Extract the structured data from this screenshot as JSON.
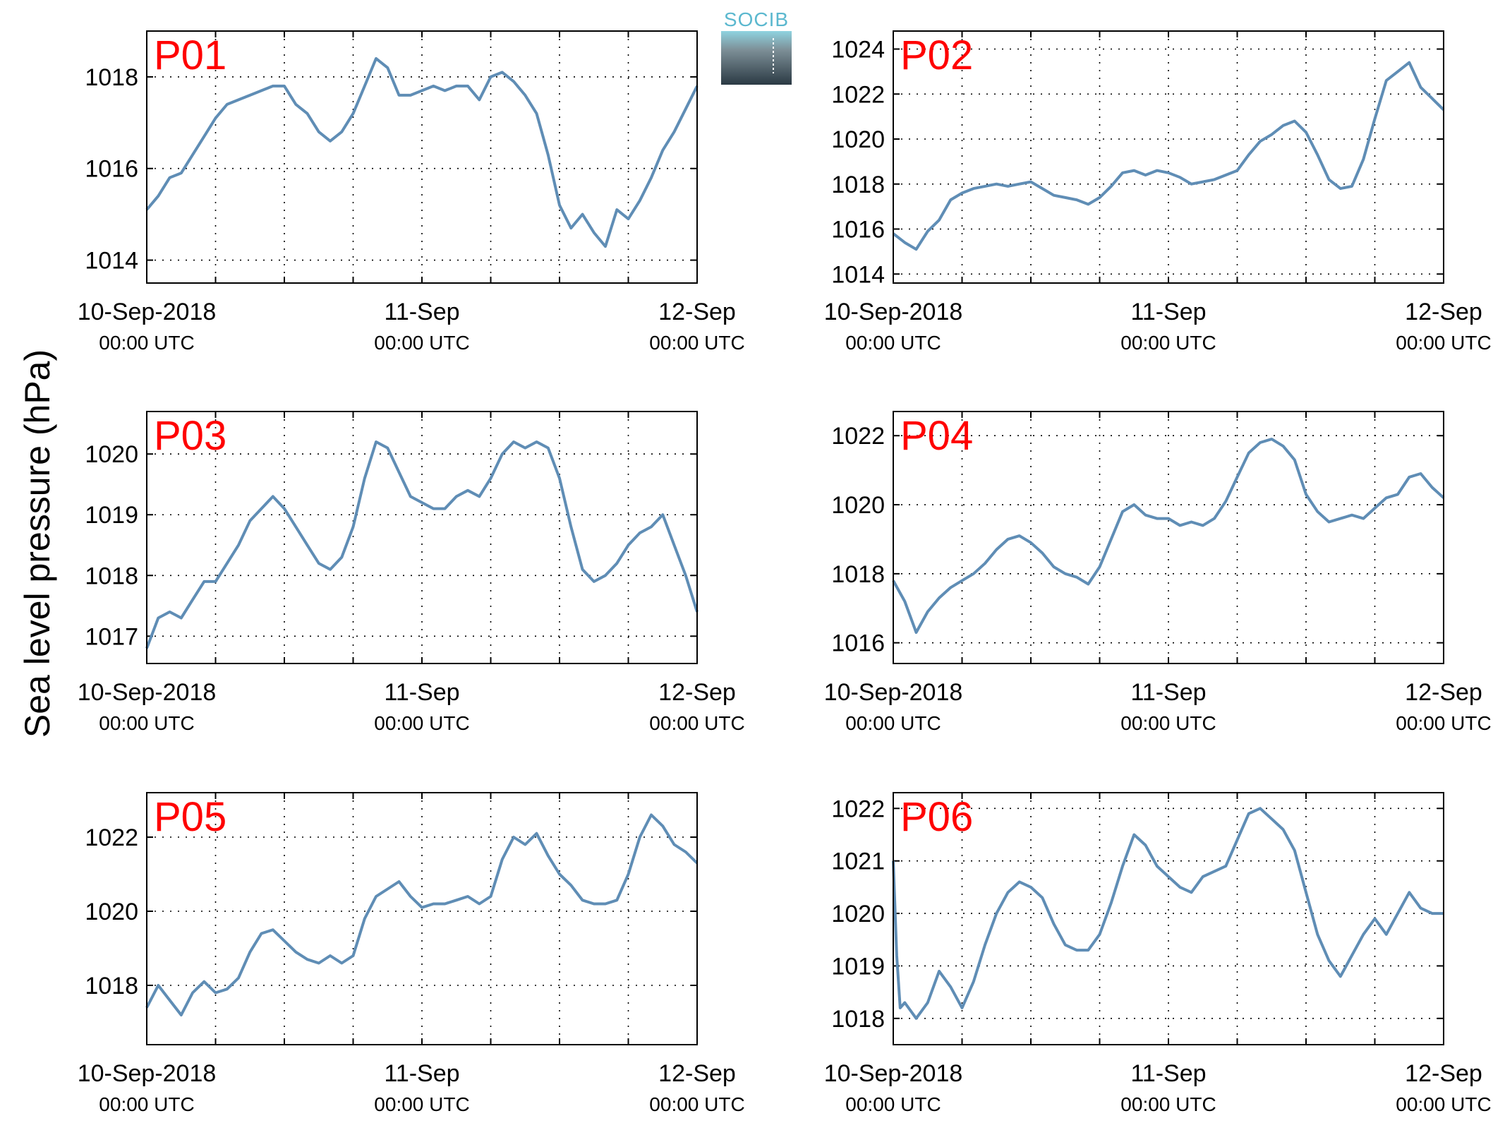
{
  "figure": {
    "ylabel": "Sea level pressure (hPa)",
    "logo": {
      "text": "SOCIB",
      "text_color": "#5bb8cf"
    },
    "line_color": "#5f8db5",
    "label_color": "#ff0000",
    "grid": true,
    "grid_style": "dotted"
  },
  "chart_data": [
    {
      "type": "line",
      "label": "P01",
      "x_ticks": [
        {
          "x": 0,
          "date": "10-Sep-2018",
          "time": "00:00 UTC"
        },
        {
          "x": 24,
          "date": "11-Sep",
          "time": "00:00 UTC"
        },
        {
          "x": 48,
          "date": "12-Sep",
          "time": "00:00 UTC"
        }
      ],
      "xlim": [
        0,
        48
      ],
      "ylim": [
        1013.5,
        1019.0
      ],
      "yticks": [
        1014,
        1016,
        1018
      ],
      "x": [
        0,
        1,
        2,
        3,
        4,
        5,
        6,
        7,
        8,
        9,
        10,
        11,
        12,
        13,
        14,
        15,
        16,
        17,
        18,
        19,
        20,
        21,
        22,
        23,
        24,
        25,
        26,
        27,
        28,
        29,
        30,
        31,
        32,
        33,
        34,
        35,
        36,
        37,
        38,
        39,
        40,
        41,
        42,
        43,
        44,
        45,
        46,
        47,
        48
      ],
      "values": [
        1015.1,
        1015.4,
        1015.8,
        1015.9,
        1016.3,
        1016.7,
        1017.1,
        1017.4,
        1017.5,
        1017.6,
        1017.7,
        1017.8,
        1017.8,
        1017.4,
        1017.2,
        1016.8,
        1016.6,
        1016.8,
        1017.2,
        1017.8,
        1018.4,
        1018.2,
        1017.6,
        1017.6,
        1017.7,
        1017.8,
        1017.7,
        1017.8,
        1017.8,
        1017.5,
        1018.0,
        1018.1,
        1017.9,
        1017.6,
        1017.2,
        1016.3,
        1015.2,
        1014.7,
        1015.0,
        1014.6,
        1014.3,
        1015.1,
        1014.9,
        1015.3,
        1015.8,
        1016.4,
        1016.8,
        1017.3,
        1017.8
      ]
    },
    {
      "type": "line",
      "label": "P02",
      "x_ticks": [
        {
          "x": 0,
          "date": "10-Sep-2018",
          "time": "00:00 UTC"
        },
        {
          "x": 24,
          "date": "11-Sep",
          "time": "00:00 UTC"
        },
        {
          "x": 48,
          "date": "12-Sep",
          "time": "00:00 UTC"
        }
      ],
      "xlim": [
        0,
        48
      ],
      "ylim": [
        1013.6,
        1024.8
      ],
      "yticks": [
        1014,
        1016,
        1018,
        1020,
        1022,
        1024
      ],
      "x": [
        0,
        1,
        2,
        3,
        4,
        5,
        6,
        7,
        8,
        9,
        10,
        11,
        12,
        13,
        14,
        15,
        16,
        17,
        18,
        19,
        20,
        21,
        22,
        23,
        24,
        25,
        26,
        27,
        28,
        29,
        30,
        31,
        32,
        33,
        34,
        35,
        36,
        37,
        38,
        39,
        40,
        41,
        42,
        43,
        44,
        45,
        46,
        47,
        48
      ],
      "values": [
        1015.8,
        1015.4,
        1015.1,
        1015.9,
        1016.4,
        1017.3,
        1017.6,
        1017.8,
        1017.9,
        1018.0,
        1017.9,
        1018.0,
        1018.1,
        1017.8,
        1017.5,
        1017.4,
        1017.3,
        1017.1,
        1017.4,
        1017.9,
        1018.5,
        1018.6,
        1018.4,
        1018.6,
        1018.5,
        1018.3,
        1018.0,
        1018.1,
        1018.2,
        1018.4,
        1018.6,
        1019.3,
        1019.9,
        1020.2,
        1020.6,
        1020.8,
        1020.3,
        1019.3,
        1018.2,
        1017.8,
        1017.9,
        1019.1,
        1020.9,
        1022.6,
        1023.0,
        1023.4,
        1022.3,
        1021.8,
        1021.3
      ]
    },
    {
      "type": "line",
      "label": "P03",
      "x_ticks": [
        {
          "x": 0,
          "date": "10-Sep-2018",
          "time": "00:00 UTC"
        },
        {
          "x": 24,
          "date": "11-Sep",
          "time": "00:00 UTC"
        },
        {
          "x": 48,
          "date": "12-Sep",
          "time": "00:00 UTC"
        }
      ],
      "xlim": [
        0,
        48
      ],
      "ylim": [
        1016.55,
        1020.7
      ],
      "yticks": [
        1017,
        1018,
        1019,
        1020
      ],
      "x": [
        0,
        1,
        2,
        3,
        4,
        5,
        6,
        7,
        8,
        9,
        10,
        11,
        12,
        13,
        14,
        15,
        16,
        17,
        18,
        19,
        20,
        21,
        22,
        23,
        24,
        25,
        26,
        27,
        28,
        29,
        30,
        31,
        32,
        33,
        34,
        35,
        36,
        37,
        38,
        39,
        40,
        41,
        42,
        43,
        44,
        45,
        46,
        47,
        48
      ],
      "values": [
        1016.8,
        1017.3,
        1017.4,
        1017.3,
        1017.6,
        1017.9,
        1017.9,
        1018.2,
        1018.5,
        1018.9,
        1019.1,
        1019.3,
        1019.1,
        1018.8,
        1018.5,
        1018.2,
        1018.1,
        1018.3,
        1018.8,
        1019.6,
        1020.2,
        1020.1,
        1019.7,
        1019.3,
        1019.2,
        1019.1,
        1019.1,
        1019.3,
        1019.4,
        1019.3,
        1019.6,
        1020.0,
        1020.2,
        1020.1,
        1020.2,
        1020.1,
        1019.6,
        1018.8,
        1018.1,
        1017.9,
        1018.0,
        1018.2,
        1018.5,
        1018.7,
        1018.8,
        1019.0,
        1018.5,
        1018.0,
        1017.4
      ]
    },
    {
      "type": "line",
      "label": "P04",
      "x_ticks": [
        {
          "x": 0,
          "date": "10-Sep-2018",
          "time": "00:00 UTC"
        },
        {
          "x": 24,
          "date": "11-Sep",
          "time": "00:00 UTC"
        },
        {
          "x": 48,
          "date": "12-Sep",
          "time": "00:00 UTC"
        }
      ],
      "xlim": [
        0,
        48
      ],
      "ylim": [
        1015.4,
        1022.7
      ],
      "yticks": [
        1016,
        1018,
        1020,
        1022
      ],
      "x": [
        0,
        1,
        2,
        3,
        4,
        5,
        6,
        7,
        8,
        9,
        10,
        11,
        12,
        13,
        14,
        15,
        16,
        17,
        18,
        19,
        20,
        21,
        22,
        23,
        24,
        25,
        26,
        27,
        28,
        29,
        30,
        31,
        32,
        33,
        34,
        35,
        36,
        37,
        38,
        39,
        40,
        41,
        42,
        43,
        44,
        45,
        46,
        47,
        48
      ],
      "values": [
        1017.8,
        1017.2,
        1016.3,
        1016.9,
        1017.3,
        1017.6,
        1017.8,
        1018.0,
        1018.3,
        1018.7,
        1019.0,
        1019.1,
        1018.9,
        1018.6,
        1018.2,
        1018.0,
        1017.9,
        1017.7,
        1018.2,
        1019.0,
        1019.8,
        1020.0,
        1019.7,
        1019.6,
        1019.6,
        1019.4,
        1019.5,
        1019.4,
        1019.6,
        1020.1,
        1020.8,
        1021.5,
        1021.8,
        1021.9,
        1021.7,
        1021.3,
        1020.3,
        1019.8,
        1019.5,
        1019.6,
        1019.7,
        1019.6,
        1019.9,
        1020.2,
        1020.3,
        1020.8,
        1020.9,
        1020.5,
        1020.2
      ]
    },
    {
      "type": "line",
      "label": "P05",
      "x_ticks": [
        {
          "x": 0,
          "date": "10-Sep-2018",
          "time": "00:00 UTC"
        },
        {
          "x": 24,
          "date": "11-Sep",
          "time": "00:00 UTC"
        },
        {
          "x": 48,
          "date": "12-Sep",
          "time": "00:00 UTC"
        }
      ],
      "xlim": [
        0,
        48
      ],
      "ylim": [
        1016.4,
        1023.2
      ],
      "yticks": [
        1018,
        1020,
        1022
      ],
      "x": [
        0,
        1,
        2,
        3,
        4,
        5,
        6,
        7,
        8,
        9,
        10,
        11,
        12,
        13,
        14,
        15,
        16,
        17,
        18,
        19,
        20,
        21,
        22,
        23,
        24,
        25,
        26,
        27,
        28,
        29,
        30,
        31,
        32,
        33,
        34,
        35,
        36,
        37,
        38,
        39,
        40,
        41,
        42,
        43,
        44,
        45,
        46,
        47,
        48
      ],
      "values": [
        1017.4,
        1018.0,
        1017.6,
        1017.2,
        1017.8,
        1018.1,
        1017.8,
        1017.9,
        1018.2,
        1018.9,
        1019.4,
        1019.5,
        1019.2,
        1018.9,
        1018.7,
        1018.6,
        1018.8,
        1018.6,
        1018.8,
        1019.8,
        1020.4,
        1020.6,
        1020.8,
        1020.4,
        1020.1,
        1020.2,
        1020.2,
        1020.3,
        1020.4,
        1020.2,
        1020.4,
        1021.4,
        1022.0,
        1021.8,
        1022.1,
        1021.5,
        1021.0,
        1020.7,
        1020.3,
        1020.2,
        1020.2,
        1020.3,
        1021.0,
        1022.0,
        1022.6,
        1022.3,
        1021.8,
        1021.6,
        1021.3
      ]
    },
    {
      "type": "line",
      "label": "P06",
      "x_ticks": [
        {
          "x": 0,
          "date": "10-Sep-2018",
          "time": "00:00 UTC"
        },
        {
          "x": 24,
          "date": "11-Sep",
          "time": "00:00 UTC"
        },
        {
          "x": 48,
          "date": "12-Sep",
          "time": "00:00 UTC"
        }
      ],
      "xlim": [
        0,
        48
      ],
      "ylim": [
        1017.5,
        1022.3
      ],
      "yticks": [
        1018,
        1019,
        1020,
        1021,
        1022
      ],
      "x": [
        0,
        0.3,
        0.6,
        1,
        2,
        3,
        4,
        5,
        6,
        7,
        8,
        9,
        10,
        11,
        12,
        13,
        14,
        15,
        16,
        17,
        18,
        19,
        20,
        21,
        22,
        23,
        24,
        25,
        26,
        27,
        28,
        29,
        30,
        31,
        32,
        33,
        34,
        35,
        36,
        37,
        38,
        39,
        40,
        41,
        42,
        43,
        44,
        45,
        46,
        47,
        48
      ],
      "values": [
        1021.0,
        1019.2,
        1018.2,
        1018.3,
        1018.0,
        1018.3,
        1018.9,
        1018.6,
        1018.2,
        1018.7,
        1019.4,
        1020.0,
        1020.4,
        1020.6,
        1020.5,
        1020.3,
        1019.8,
        1019.4,
        1019.3,
        1019.3,
        1019.6,
        1020.2,
        1020.9,
        1021.5,
        1021.3,
        1020.9,
        1020.7,
        1020.5,
        1020.4,
        1020.7,
        1020.8,
        1020.9,
        1021.4,
        1021.9,
        1022.0,
        1021.8,
        1021.6,
        1021.2,
        1020.4,
        1019.6,
        1019.1,
        1018.8,
        1019.2,
        1019.6,
        1019.9,
        1019.6,
        1020.0,
        1020.4,
        1020.1,
        1020.0,
        1020.0
      ]
    }
  ]
}
